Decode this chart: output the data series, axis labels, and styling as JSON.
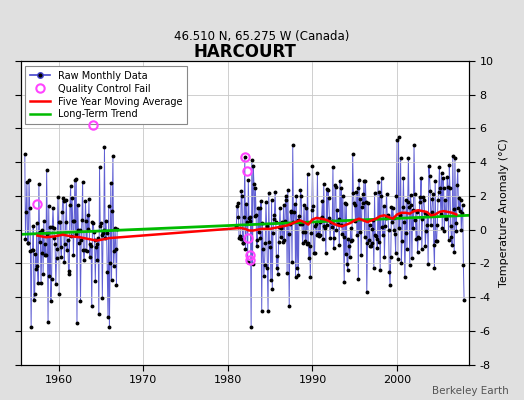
{
  "title": "HARCOURT",
  "subtitle": "46.510 N, 65.275 W (Canada)",
  "ylabel": "Temperature Anomaly (°C)",
  "watermark": "Berkeley Earth",
  "ylim": [
    -8,
    10
  ],
  "yticks": [
    -8,
    -6,
    -4,
    -2,
    0,
    2,
    4,
    6,
    8,
    10
  ],
  "xlim": [
    1955.5,
    2008.5
  ],
  "xticks": [
    1960,
    1970,
    1980,
    1990,
    2000
  ],
  "bg_color": "#e0e0e0",
  "plot_bg_color": "#ffffff",
  "grid_color": "#c8c8c8",
  "raw_line_color": "#4444cc",
  "raw_dot_color": "#000000",
  "qc_fail_color": "#ff44ff",
  "moving_avg_color": "#ff0000",
  "trend_color": "#00bb00",
  "trend_x": [
    1955.5,
    2008.5
  ],
  "trend_y": [
    -0.28,
    0.85
  ],
  "moving_avg_x": [
    1957.5,
    1958.5,
    1959.5,
    1960.5,
    1961.5,
    1962.5,
    1963.0,
    1963.5,
    1964.0,
    1964.5,
    1965.0,
    1965.5,
    1966.0,
    1981.5,
    1982.0,
    1982.5,
    1983.0,
    1983.5,
    1984.0,
    1984.5,
    1985.0,
    1985.5,
    1986.0,
    1986.5,
    1987.0,
    1987.5,
    1988.0,
    1988.5,
    1989.0,
    1989.5,
    1990.0,
    1990.5,
    1991.0,
    1991.5,
    1992.0,
    1992.5,
    1993.0,
    1993.5,
    1994.0,
    1994.5,
    1995.0,
    1995.5,
    1996.0,
    1996.5,
    1997.0,
    1997.5,
    1998.0,
    1998.5,
    1999.0,
    1999.5,
    2000.0,
    2000.5,
    2001.0,
    2001.5,
    2002.0,
    2002.5,
    2003.0,
    2003.5,
    2004.0,
    2004.5,
    2005.0,
    2005.5,
    2006.0,
    2006.5,
    2007.0
  ],
  "moving_avg_y": [
    -0.35,
    -0.45,
    -0.4,
    -0.3,
    -0.4,
    -0.45,
    -0.5,
    -0.55,
    -0.6,
    -0.65,
    -0.6,
    -0.55,
    -0.5,
    0.1,
    0.05,
    -0.05,
    -0.05,
    0.0,
    0.05,
    0.05,
    0.05,
    0.1,
    0.15,
    0.2,
    0.25,
    0.35,
    0.45,
    0.55,
    0.45,
    0.3,
    0.6,
    0.7,
    0.65,
    0.6,
    0.5,
    0.35,
    0.25,
    0.2,
    0.3,
    0.4,
    0.55,
    0.65,
    0.55,
    0.45,
    0.55,
    0.65,
    0.8,
    0.85,
    0.75,
    0.65,
    0.9,
    1.0,
    1.0,
    0.95,
    1.1,
    1.15,
    1.1,
    1.05,
    0.85,
    0.9,
    1.05,
    1.1,
    1.05,
    1.0,
    0.9
  ],
  "qc_fail_x": [
    1957.5,
    1964.083,
    1982.083,
    1982.25,
    1982.417,
    1982.583,
    1982.667
  ],
  "qc_fail_y": [
    1.5,
    6.2,
    4.3,
    3.5,
    -0.5,
    -1.8,
    -1.5
  ]
}
